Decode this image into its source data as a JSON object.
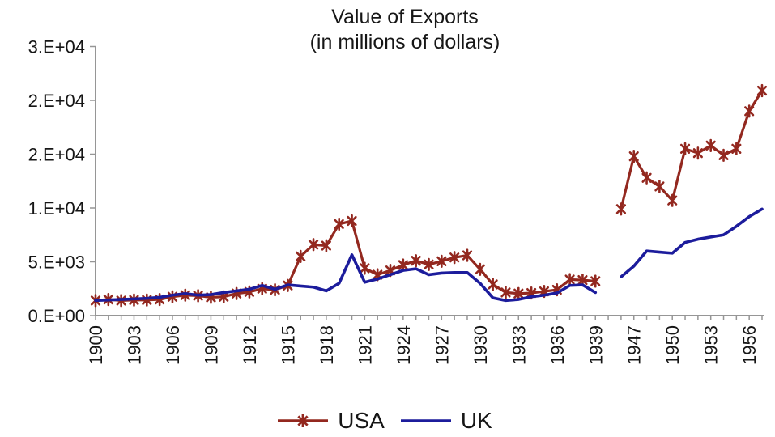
{
  "title": {
    "line1": "Value of Exports",
    "line2": "(in millions of dollars)"
  },
  "legend": {
    "items": [
      {
        "label": "USA",
        "color": "#93281f",
        "marker": "asterisk-line"
      },
      {
        "label": "UK",
        "color": "#1c1c9c",
        "marker": "line"
      }
    ]
  },
  "chart_data": {
    "type": "line",
    "title": "Value of Exports",
    "subtitle": "(in millions of dollars)",
    "grid": false,
    "legend_position": "bottom",
    "x_categories": [
      1900,
      1901,
      1902,
      1903,
      1904,
      1905,
      1906,
      1907,
      1908,
      1909,
      1910,
      1911,
      1912,
      1913,
      1914,
      1915,
      1916,
      1917,
      1918,
      1919,
      1920,
      1921,
      1922,
      1923,
      1924,
      1925,
      1926,
      1927,
      1928,
      1929,
      1930,
      1931,
      1932,
      1933,
      1934,
      1935,
      1936,
      1937,
      1938,
      1939,
      1945,
      1946,
      1947,
      1948,
      1949,
      1950,
      1951,
      1952,
      1953,
      1954,
      1955,
      1956,
      1957
    ],
    "series": [
      {
        "name": "USA",
        "color": "#93281f",
        "marker": "asterisk",
        "values": [
          1400,
          1500,
          1400,
          1450,
          1450,
          1500,
          1750,
          1900,
          1850,
          1700,
          1750,
          2050,
          2200,
          2500,
          2400,
          2800,
          5500,
          6600,
          6500,
          8500,
          8800,
          4400,
          3800,
          4200,
          4700,
          5100,
          4750,
          5050,
          5400,
          5600,
          4300,
          2900,
          2150,
          2050,
          2100,
          2250,
          2400,
          3350,
          3300,
          3200,
          null,
          9900,
          14800,
          12800,
          12000,
          10700,
          15500,
          15100,
          15800,
          14900,
          15500,
          19000,
          20900
        ]
      },
      {
        "name": "UK",
        "color": "#1c1c9c",
        "marker": "none",
        "values": [
          1400,
          1450,
          1500,
          1550,
          1600,
          1700,
          1900,
          2050,
          1900,
          1950,
          2150,
          2300,
          2450,
          2800,
          2450,
          2850,
          2750,
          2650,
          2300,
          3000,
          5650,
          3100,
          3400,
          3800,
          4200,
          4350,
          3800,
          3950,
          4000,
          4000,
          3000,
          1650,
          1400,
          1500,
          1750,
          1900,
          2100,
          2800,
          2850,
          2150,
          null,
          3600,
          4600,
          6000,
          5900,
          5800,
          6800,
          7100,
          7300,
          7500,
          8300,
          9200,
          9900
        ]
      }
    ],
    "y_axis": {
      "min": 0,
      "max": 25000,
      "tick_step": 5000,
      "tick_labels": [
        "0.E+00",
        "5.E+03",
        "1.E+04",
        "2.E+04",
        "2.E+04",
        "3.E+04"
      ]
    },
    "x_axis": {
      "label_every": 3,
      "tick_labels_shown": [
        "1900",
        "1903",
        "1906",
        "1909",
        "1912",
        "1915",
        "1918",
        "1921",
        "1924",
        "1927",
        "1930",
        "1933",
        "1936",
        "1939",
        "1947",
        "1950",
        "1953",
        "1956"
      ]
    }
  }
}
